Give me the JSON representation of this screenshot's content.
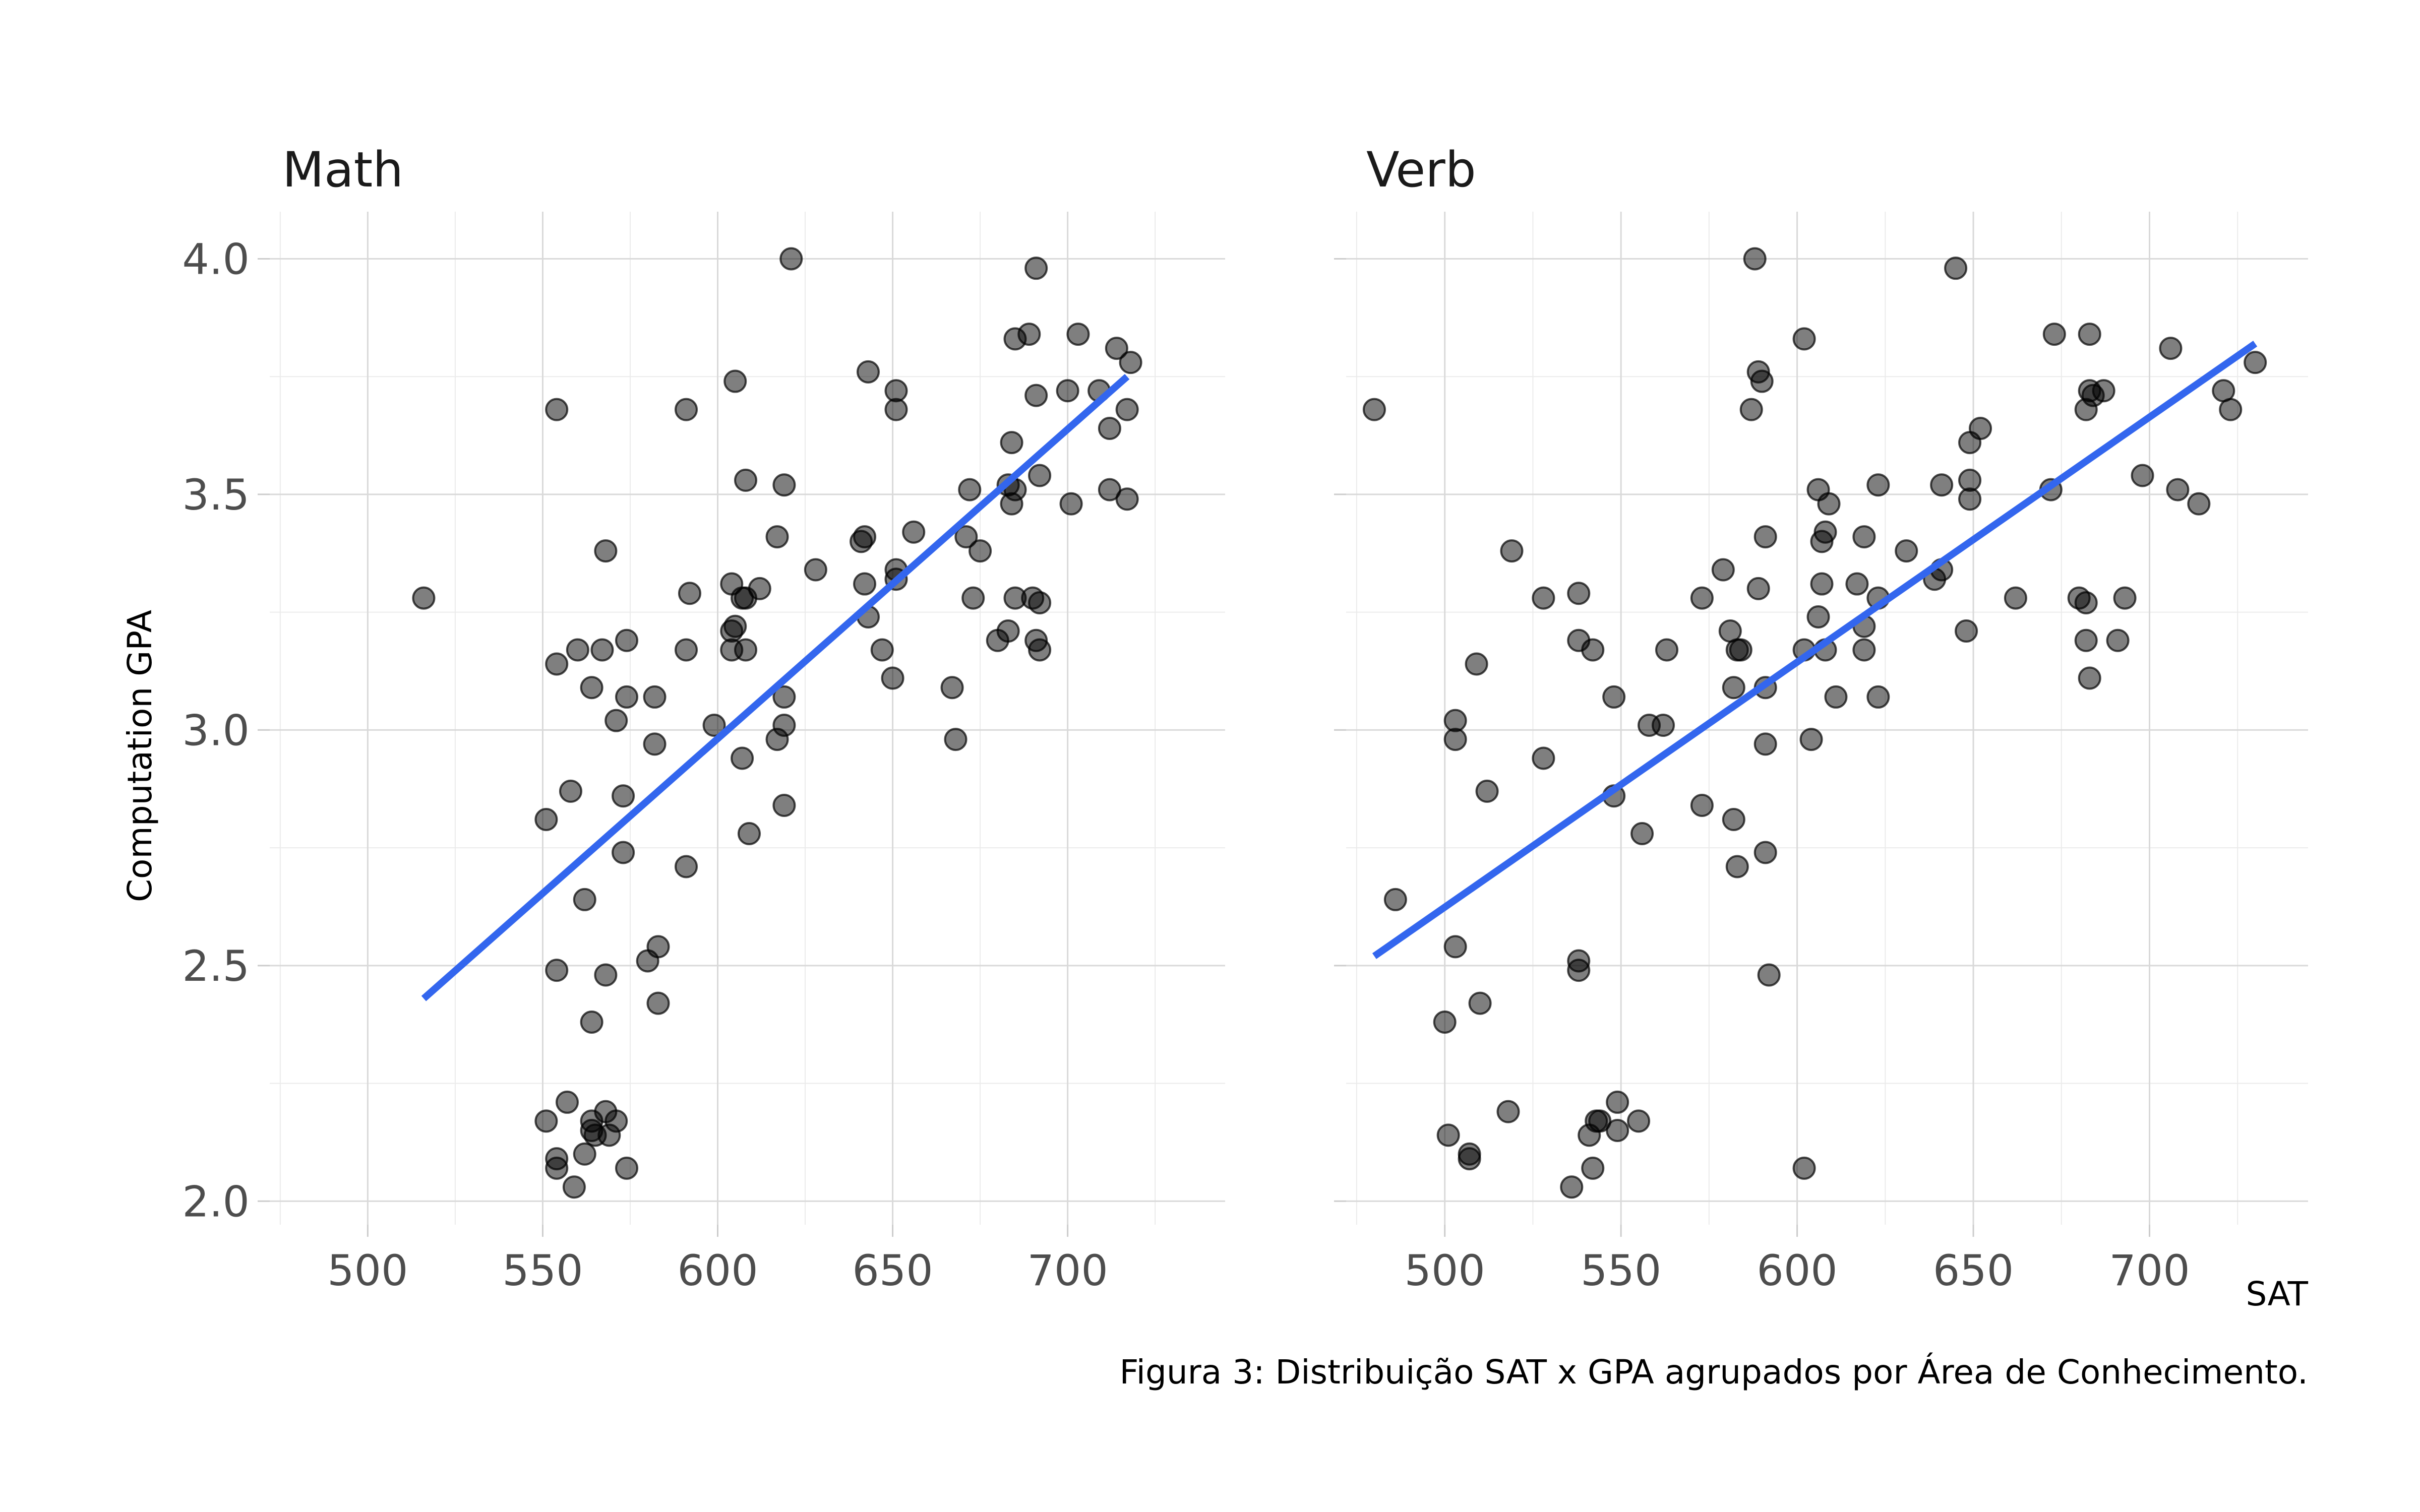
{
  "chart_data": {
    "type": "scatter",
    "caption": "Figura 3: Distribuição SAT x GPA agrupados por Área de Conhecimento.",
    "xlabel": "SAT",
    "ylabel": "Computation GPA",
    "xlim": [
      472,
      745
    ],
    "ylim": [
      1.95,
      4.1
    ],
    "x_ticks": [
      500,
      550,
      600,
      650,
      700
    ],
    "y_ticks": [
      2.0,
      2.5,
      3.0,
      3.5,
      4.0
    ],
    "y_tick_labels": [
      "2.0",
      "2.5",
      "3.0",
      "3.5",
      "4.0"
    ],
    "grid": true,
    "colors": {
      "points": "#000000",
      "fit_line": "#3366ee"
    },
    "facets": [
      {
        "name": "Math",
        "xlim": [
          472,
          745
        ],
        "fit_line": {
          "x": [
            516,
            717
          ],
          "y": [
            2.43,
            3.75
          ]
        },
        "points": [
          [
            516,
            3.28
          ],
          [
            551,
            2.81
          ],
          [
            551,
            2.17
          ],
          [
            554,
            3.68
          ],
          [
            554,
            3.14
          ],
          [
            554,
            2.49
          ],
          [
            554,
            2.09
          ],
          [
            554,
            2.07
          ],
          [
            557,
            2.21
          ],
          [
            558,
            2.87
          ],
          [
            559,
            2.03
          ],
          [
            560,
            3.17
          ],
          [
            562,
            2.64
          ],
          [
            562,
            2.1
          ],
          [
            564,
            3.09
          ],
          [
            564,
            2.38
          ],
          [
            564,
            2.17
          ],
          [
            564,
            2.15
          ],
          [
            565,
            2.14
          ],
          [
            567,
            3.17
          ],
          [
            568,
            3.38
          ],
          [
            568,
            2.48
          ],
          [
            568,
            2.19
          ],
          [
            569,
            2.14
          ],
          [
            571,
            3.02
          ],
          [
            571,
            2.17
          ],
          [
            573,
            2.74
          ],
          [
            573,
            2.86
          ],
          [
            574,
            3.19
          ],
          [
            574,
            3.07
          ],
          [
            574,
            2.07
          ],
          [
            580,
            2.51
          ],
          [
            582,
            2.97
          ],
          [
            582,
            3.07
          ],
          [
            583,
            2.54
          ],
          [
            583,
            2.42
          ],
          [
            591,
            3.68
          ],
          [
            591,
            3.17
          ],
          [
            591,
            2.71
          ],
          [
            592,
            3.29
          ],
          [
            599,
            3.01
          ],
          [
            604,
            3.31
          ],
          [
            604,
            3.21
          ],
          [
            604,
            3.17
          ],
          [
            605,
            3.74
          ],
          [
            605,
            3.22
          ],
          [
            607,
            2.94
          ],
          [
            607,
            3.28
          ],
          [
            608,
            3.17
          ],
          [
            608,
            3.53
          ],
          [
            608,
            3.28
          ],
          [
            609,
            2.78
          ],
          [
            612,
            3.3
          ],
          [
            617,
            3.41
          ],
          [
            617,
            2.98
          ],
          [
            619,
            3.52
          ],
          [
            619,
            3.01
          ],
          [
            619,
            3.07
          ],
          [
            619,
            2.84
          ],
          [
            621,
            4.0
          ],
          [
            628,
            3.34
          ],
          [
            641,
            3.4
          ],
          [
            642,
            3.31
          ],
          [
            642,
            3.41
          ],
          [
            643,
            3.76
          ],
          [
            643,
            3.24
          ],
          [
            647,
            3.17
          ],
          [
            650,
            3.11
          ],
          [
            651,
            3.72
          ],
          [
            651,
            3.68
          ],
          [
            651,
            3.34
          ],
          [
            651,
            3.32
          ],
          [
            656,
            3.42
          ],
          [
            667,
            3.09
          ],
          [
            668,
            2.98
          ],
          [
            671,
            3.41
          ],
          [
            672,
            3.51
          ],
          [
            673,
            3.28
          ],
          [
            675,
            3.38
          ],
          [
            680,
            3.19
          ],
          [
            683,
            3.21
          ],
          [
            683,
            3.52
          ],
          [
            684,
            3.61
          ],
          [
            684,
            3.48
          ],
          [
            685,
            3.83
          ],
          [
            685,
            3.51
          ],
          [
            685,
            3.28
          ],
          [
            689,
            3.84
          ],
          [
            690,
            3.28
          ],
          [
            691,
            3.98
          ],
          [
            691,
            3.71
          ],
          [
            691,
            3.19
          ],
          [
            692,
            3.54
          ],
          [
            692,
            3.27
          ],
          [
            692,
            3.17
          ],
          [
            700,
            3.72
          ],
          [
            701,
            3.48
          ],
          [
            703,
            3.84
          ],
          [
            709,
            3.72
          ],
          [
            712,
            3.64
          ],
          [
            712,
            3.51
          ],
          [
            714,
            3.81
          ],
          [
            717,
            3.68
          ],
          [
            717,
            3.49
          ],
          [
            718,
            3.78
          ]
        ]
      },
      {
        "name": "Verb",
        "xlim": [
          472,
          745
        ],
        "fit_line": {
          "x": [
            480,
            730
          ],
          "y": [
            2.52,
            3.82
          ]
        },
        "points": [
          [
            480,
            3.68
          ],
          [
            486,
            2.64
          ],
          [
            500,
            2.38
          ],
          [
            501,
            2.14
          ],
          [
            503,
            2.54
          ],
          [
            503,
            3.02
          ],
          [
            503,
            2.98
          ],
          [
            507,
            2.1
          ],
          [
            507,
            2.09
          ],
          [
            509,
            3.14
          ],
          [
            510,
            2.42
          ],
          [
            512,
            2.87
          ],
          [
            518,
            2.19
          ],
          [
            519,
            3.38
          ],
          [
            528,
            3.28
          ],
          [
            528,
            2.94
          ],
          [
            536,
            2.03
          ],
          [
            538,
            3.29
          ],
          [
            538,
            3.19
          ],
          [
            538,
            2.51
          ],
          [
            538,
            2.49
          ],
          [
            541,
            2.14
          ],
          [
            542,
            3.17
          ],
          [
            542,
            2.07
          ],
          [
            543,
            2.17
          ],
          [
            544,
            2.17
          ],
          [
            548,
            3.07
          ],
          [
            548,
            2.86
          ],
          [
            549,
            2.21
          ],
          [
            549,
            2.15
          ],
          [
            555,
            2.17
          ],
          [
            556,
            2.78
          ],
          [
            558,
            3.01
          ],
          [
            562,
            3.01
          ],
          [
            563,
            3.17
          ],
          [
            573,
            3.28
          ],
          [
            573,
            2.84
          ],
          [
            579,
            3.34
          ],
          [
            581,
            3.21
          ],
          [
            582,
            2.81
          ],
          [
            582,
            3.09
          ],
          [
            583,
            3.17
          ],
          [
            583,
            2.71
          ],
          [
            584,
            3.17
          ],
          [
            587,
            3.68
          ],
          [
            588,
            4.0
          ],
          [
            589,
            3.76
          ],
          [
            589,
            3.3
          ],
          [
            590,
            3.74
          ],
          [
            591,
            3.41
          ],
          [
            591,
            3.09
          ],
          [
            591,
            2.97
          ],
          [
            591,
            2.74
          ],
          [
            592,
            2.48
          ],
          [
            602,
            3.17
          ],
          [
            602,
            3.83
          ],
          [
            602,
            2.07
          ],
          [
            604,
            2.98
          ],
          [
            606,
            3.51
          ],
          [
            606,
            3.24
          ],
          [
            607,
            3.4
          ],
          [
            607,
            3.31
          ],
          [
            608,
            3.17
          ],
          [
            608,
            3.42
          ],
          [
            609,
            3.48
          ],
          [
            611,
            3.07
          ],
          [
            617,
            3.31
          ],
          [
            619,
            3.41
          ],
          [
            619,
            3.22
          ],
          [
            619,
            3.17
          ],
          [
            623,
            3.52
          ],
          [
            623,
            3.28
          ],
          [
            623,
            3.07
          ],
          [
            631,
            3.38
          ],
          [
            639,
            3.32
          ],
          [
            641,
            3.52
          ],
          [
            641,
            3.34
          ],
          [
            645,
            3.98
          ],
          [
            648,
            3.21
          ],
          [
            649,
            3.61
          ],
          [
            649,
            3.53
          ],
          [
            649,
            3.49
          ],
          [
            652,
            3.64
          ],
          [
            662,
            3.28
          ],
          [
            672,
            3.51
          ],
          [
            673,
            3.84
          ],
          [
            680,
            3.28
          ],
          [
            682,
            3.27
          ],
          [
            682,
            3.19
          ],
          [
            682,
            3.68
          ],
          [
            683,
            3.72
          ],
          [
            683,
            3.84
          ],
          [
            683,
            3.11
          ],
          [
            684,
            3.71
          ],
          [
            687,
            3.72
          ],
          [
            691,
            3.19
          ],
          [
            693,
            3.28
          ],
          [
            698,
            3.54
          ],
          [
            706,
            3.81
          ],
          [
            708,
            3.51
          ],
          [
            714,
            3.48
          ],
          [
            721,
            3.72
          ],
          [
            723,
            3.68
          ],
          [
            730,
            3.78
          ]
        ]
      }
    ]
  }
}
